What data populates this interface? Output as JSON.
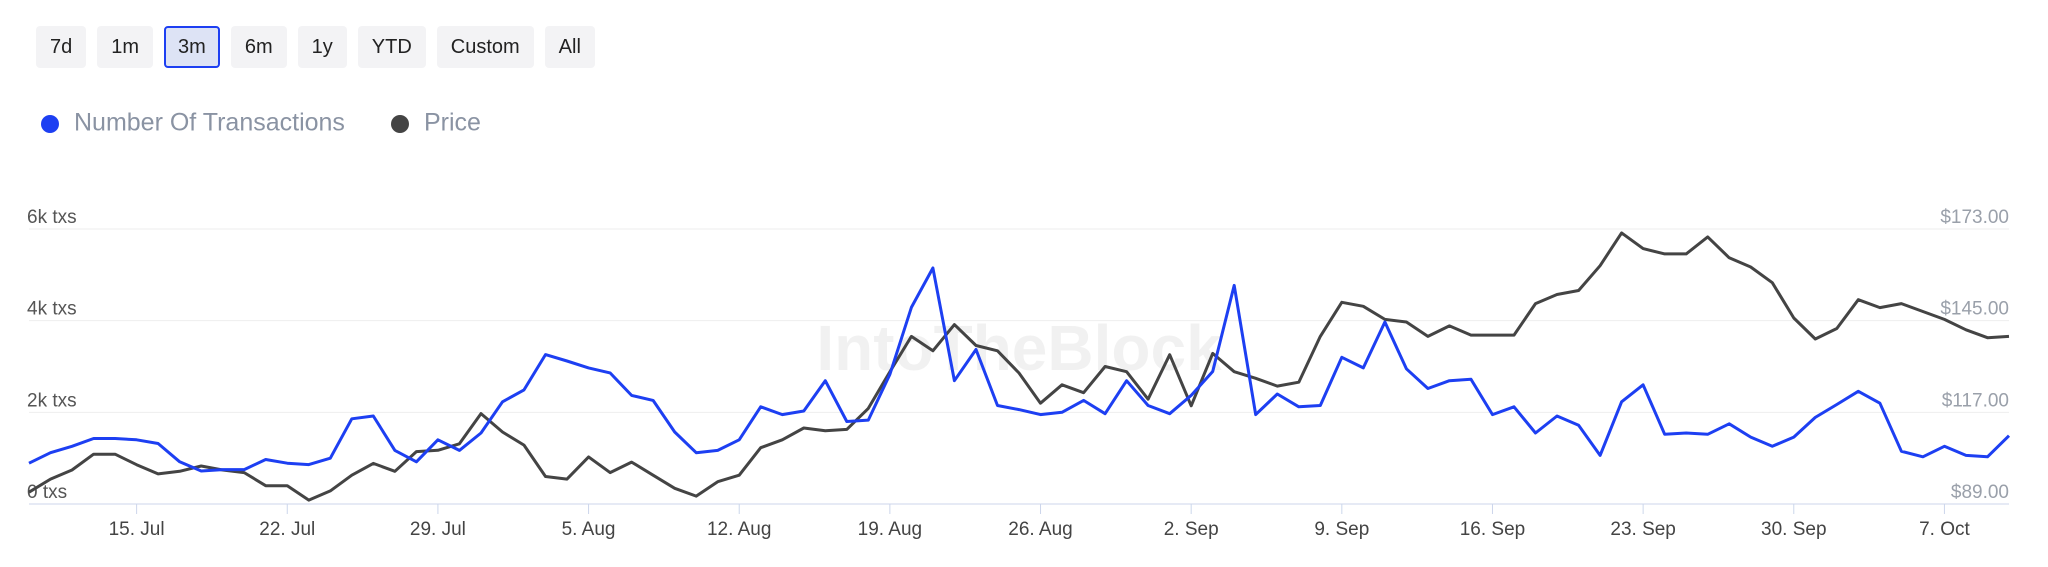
{
  "range_buttons": {
    "labels": [
      "7d",
      "1m",
      "3m",
      "6m",
      "1y",
      "YTD",
      "Custom",
      "All"
    ],
    "selected": 2
  },
  "watermark": "IntoTheBlock",
  "chart_data": {
    "type": "line",
    "categories": [
      null,
      null,
      null,
      null,
      null,
      "15. Jul",
      null,
      null,
      null,
      null,
      null,
      null,
      "22. Jul",
      null,
      null,
      null,
      null,
      null,
      null,
      "29. Jul",
      null,
      null,
      null,
      null,
      null,
      null,
      "5. Aug",
      null,
      null,
      null,
      null,
      null,
      null,
      "12. Aug",
      null,
      null,
      null,
      null,
      null,
      null,
      "19. Aug",
      null,
      null,
      null,
      null,
      null,
      null,
      "26. Aug",
      null,
      null,
      null,
      null,
      null,
      null,
      "2. Sep",
      null,
      null,
      null,
      null,
      null,
      null,
      "9. Sep",
      null,
      null,
      null,
      null,
      null,
      null,
      "16. Sep",
      null,
      null,
      null,
      null,
      null,
      null,
      "23. Sep",
      null,
      null,
      null,
      null,
      null,
      null,
      "30. Sep",
      null,
      null,
      null,
      null,
      null,
      null,
      "7. Oct",
      null,
      null,
      null
    ],
    "series": [
      {
        "name": "Number Of Transactions",
        "color": "#1d3ff2",
        "axis": "y",
        "values": [
          890,
          1120,
          1260,
          1430,
          1430,
          1400,
          1320,
          920,
          720,
          750,
          750,
          970,
          890,
          860,
          1000,
          1860,
          1920,
          1170,
          920,
          1400,
          1170,
          1550,
          2230,
          2490,
          3260,
          3120,
          2970,
          2860,
          2370,
          2260,
          1570,
          1120,
          1170,
          1400,
          2120,
          1950,
          2030,
          2690,
          1800,
          1830,
          2830,
          4290,
          5150,
          2690,
          3370,
          2150,
          2060,
          1950,
          2000,
          2260,
          1970,
          2690,
          2150,
          1970,
          2370,
          2890,
          4770,
          1950,
          2400,
          2120,
          2150,
          3200,
          2970,
          3970,
          2950,
          2520,
          2690,
          2720,
          1950,
          2120,
          1550,
          1920,
          1720,
          1060,
          2230,
          2600,
          1520,
          1550,
          1520,
          1750,
          1460,
          1260,
          1460,
          1890,
          2170,
          2460,
          2200,
          1150,
          1030,
          1260,
          1060,
          1030,
          1490
        ]
      },
      {
        "name": "Price",
        "color": "#444444",
        "axis": "y2",
        "values": [
          92.6,
          96.6,
          99.4,
          104.2,
          104.2,
          101,
          98.2,
          99,
          100.6,
          99.4,
          98.6,
          94.6,
          94.6,
          90.2,
          93,
          97.8,
          101.4,
          99,
          105,
          105.4,
          107.4,
          116.6,
          111,
          107,
          97.4,
          96.6,
          103.4,
          98.6,
          101.8,
          97.8,
          93.8,
          91.4,
          95.8,
          97.8,
          106.2,
          108.6,
          112.2,
          111.4,
          111.8,
          118.2,
          129.4,
          140.2,
          135.8,
          143.8,
          137.4,
          135.8,
          129,
          119.8,
          125.4,
          123,
          131,
          129.4,
          121,
          134.6,
          119,
          135,
          129.4,
          127.4,
          125,
          126.2,
          140.2,
          150.6,
          149.4,
          145.4,
          144.6,
          140.2,
          143.4,
          140.6,
          140.6,
          140.6,
          150.2,
          153,
          154.2,
          161.8,
          171.8,
          167,
          165.4,
          165.4,
          170.6,
          164.2,
          161.4,
          156.6,
          145.8,
          139.4,
          142.6,
          151.4,
          149,
          150.2,
          147.8,
          145.4,
          142.2,
          139.8,
          140.2
        ]
      }
    ],
    "ylim": [
      0,
      6000
    ],
    "yticks": [
      {
        "value": 0,
        "label": "0 txs"
      },
      {
        "value": 2000,
        "label": "2k txs"
      },
      {
        "value": 4000,
        "label": "4k txs"
      },
      {
        "value": 6000,
        "label": "6k txs"
      }
    ],
    "y2lim": [
      89,
      173
    ],
    "y2ticks": [
      {
        "value": 89,
        "label": "$89.00"
      },
      {
        "value": 117,
        "label": "$117.00"
      },
      {
        "value": 145,
        "label": "$145.00"
      },
      {
        "value": 173,
        "label": "$173.00"
      }
    ],
    "grid": true,
    "legend": "top-left"
  }
}
